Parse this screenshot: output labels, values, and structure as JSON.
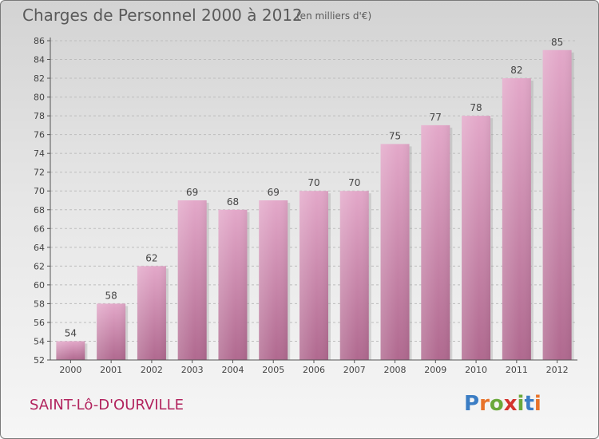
{
  "header": {
    "title": "Charges de Personnel 2000 à 2012",
    "subtitle": "(en milliers d'€)"
  },
  "footer": {
    "commune": "SAINT-Lô-D'OURVILLE",
    "logo_letters": [
      "P",
      "r",
      "o",
      "x",
      "i",
      "t",
      "i"
    ],
    "logo_colors": [
      "#3b7dc4",
      "#e8732a",
      "#6aa83a",
      "#d3342e",
      "#6aa83a",
      "#3b7dc4",
      "#e8732a"
    ]
  },
  "chart_data": {
    "type": "bar",
    "title": "Charges de Personnel 2000 à 2012",
    "subtitle": "(en milliers d'€)",
    "xlabel": "",
    "ylabel": "",
    "categories": [
      "2000",
      "2001",
      "2002",
      "2003",
      "2004",
      "2005",
      "2006",
      "2007",
      "2008",
      "2009",
      "2010",
      "2011",
      "2012"
    ],
    "values": [
      54,
      58,
      62,
      69,
      68,
      69,
      70,
      70,
      75,
      77,
      78,
      82,
      85
    ],
    "ylim": [
      52,
      86
    ],
    "yticks": [
      52,
      54,
      56,
      58,
      60,
      62,
      64,
      66,
      68,
      70,
      72,
      74,
      76,
      78,
      80,
      82,
      84,
      86
    ],
    "grid": true,
    "bar_color": "#d98db4"
  }
}
